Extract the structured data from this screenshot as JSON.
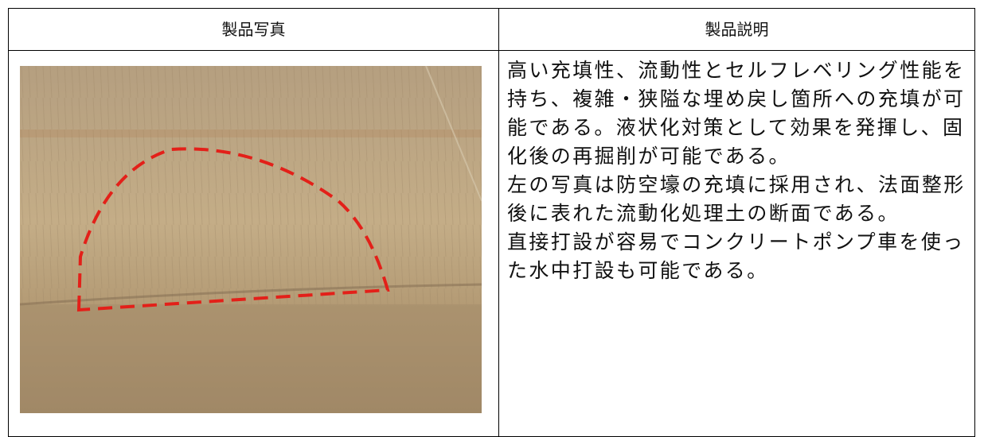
{
  "table": {
    "header": [
      "製品写真",
      "製品説明"
    ],
    "description_lines": [
      "高い充填性、流動性とセルフレベリング性能を",
      "持ち、複雑・狭隘な埋め戻し箇所への充填が可",
      "能である。液状化対策として効果を発揮し、固",
      "化後の再掘削が可能である。",
      "左の写真は防空壕の充填に採用され、法面整形",
      "後に表れた流動化処理土の断面である。",
      "直接打設が容易でコンクリートポンプ車を使っ",
      "た水中打設も可能である。"
    ]
  }
}
